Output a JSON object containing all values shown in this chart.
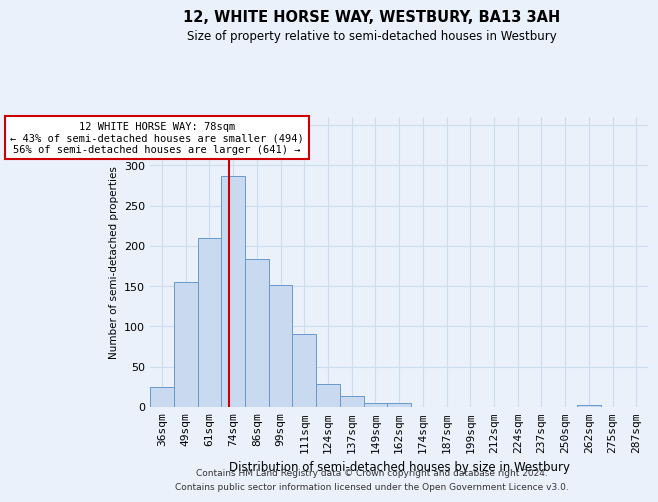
{
  "title": "12, WHITE HORSE WAY, WESTBURY, BA13 3AH",
  "subtitle": "Size of property relative to semi-detached houses in Westbury",
  "xlabel": "Distribution of semi-detached houses by size in Westbury",
  "ylabel": "Number of semi-detached properties",
  "bin_labels": [
    "36sqm",
    "49sqm",
    "61sqm",
    "74sqm",
    "86sqm",
    "99sqm",
    "111sqm",
    "124sqm",
    "137sqm",
    "149sqm",
    "162sqm",
    "174sqm",
    "187sqm",
    "199sqm",
    "212sqm",
    "224sqm",
    "237sqm",
    "250sqm",
    "262sqm",
    "275sqm",
    "287sqm"
  ],
  "bar_values": [
    25,
    155,
    210,
    287,
    184,
    152,
    91,
    28,
    14,
    5,
    5,
    0,
    0,
    0,
    0,
    0,
    0,
    0,
    2,
    0,
    0
  ],
  "bar_color": "#c9d9f0",
  "bar_edge_color": "#6699cc",
  "annotation_line1": "12 WHITE HORSE WAY: 78sqm",
  "annotation_line2": "← 43% of semi-detached houses are smaller (494)",
  "annotation_line3": "56% of semi-detached houses are larger (641) →",
  "annotation_box_color": "#ffffff",
  "annotation_box_edge_color": "#cc0000",
  "vline_color": "#cc0000",
  "grid_color": "#ccddee",
  "bg_color": "#eaf1fb",
  "ylim": [
    0,
    360
  ],
  "footer1": "Contains HM Land Registry data © Crown copyright and database right 2024.",
  "footer2": "Contains public sector information licensed under the Open Government Licence v3.0."
}
